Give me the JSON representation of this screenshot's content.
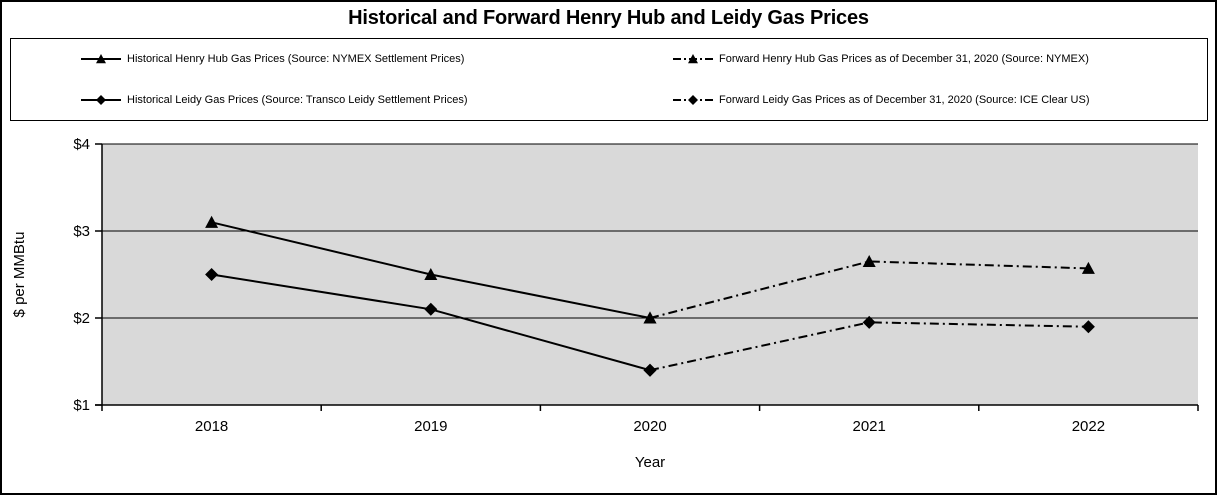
{
  "title": "Historical and Forward Henry Hub and Leidy Gas Prices",
  "legend": {
    "items": [
      {
        "label": "Historical Henry Hub Gas Prices (Source: NYMEX Settlement Prices)",
        "marker": "triangle",
        "line": "solid"
      },
      {
        "label": "Forward Henry Hub Gas Prices as of December 31, 2020 (Source: NYMEX)",
        "marker": "triangle",
        "line": "dashdot"
      },
      {
        "label": "Historical Leidy Gas Prices (Source: Transco Leidy Settlement Prices)",
        "marker": "diamond",
        "line": "solid"
      },
      {
        "label": "Forward Leidy Gas Prices as of December 31, 2020 (Source: ICE Clear US)",
        "marker": "diamond",
        "line": "dashdot"
      }
    ]
  },
  "chart_data": {
    "type": "line",
    "title": "Historical and Forward Henry Hub and Leidy Gas Prices",
    "xlabel": "Year",
    "ylabel": "$ per MMBtu",
    "categories": [
      2018,
      2019,
      2020,
      2021,
      2022
    ],
    "xtick_labels": [
      "2018",
      "2019",
      "2020",
      "2021",
      "2022"
    ],
    "ylim": [
      1,
      4
    ],
    "ytick_values": [
      1,
      2,
      3,
      4
    ],
    "ytick_labels": [
      "$1",
      "$2",
      "$3",
      "$4"
    ],
    "grid": "horizontal",
    "legend_position": "top",
    "plot_bg": "#d9d9d9",
    "line_color": "#000000",
    "series": [
      {
        "name": "Historical Henry Hub Gas Prices (Source: NYMEX Settlement Prices)",
        "marker": "triangle",
        "line": "solid",
        "points": [
          {
            "x": 2018,
            "y": 3.1
          },
          {
            "x": 2019,
            "y": 2.5
          },
          {
            "x": 2020,
            "y": 2.0
          }
        ]
      },
      {
        "name": "Forward Henry Hub Gas Prices as of December 31, 2020 (Source: NYMEX)",
        "marker": "triangle",
        "line": "dashdot",
        "points": [
          {
            "x": 2020,
            "y": 2.0
          },
          {
            "x": 2021,
            "y": 2.65
          },
          {
            "x": 2022,
            "y": 2.57
          }
        ]
      },
      {
        "name": "Historical Leidy Gas Prices (Source: Transco Leidy Settlement Prices)",
        "marker": "diamond",
        "line": "solid",
        "points": [
          {
            "x": 2018,
            "y": 2.5
          },
          {
            "x": 2019,
            "y": 2.1
          },
          {
            "x": 2020,
            "y": 1.4
          }
        ]
      },
      {
        "name": "Forward Leidy Gas Prices as of December 31, 2020 (Source: ICE Clear US)",
        "marker": "diamond",
        "line": "dashdot",
        "points": [
          {
            "x": 2020,
            "y": 1.4
          },
          {
            "x": 2021,
            "y": 1.95
          },
          {
            "x": 2022,
            "y": 1.9
          }
        ]
      }
    ]
  },
  "colors": {
    "accent": "#000000",
    "plot_background": "#d9d9d9",
    "frame_border": "#000000"
  }
}
